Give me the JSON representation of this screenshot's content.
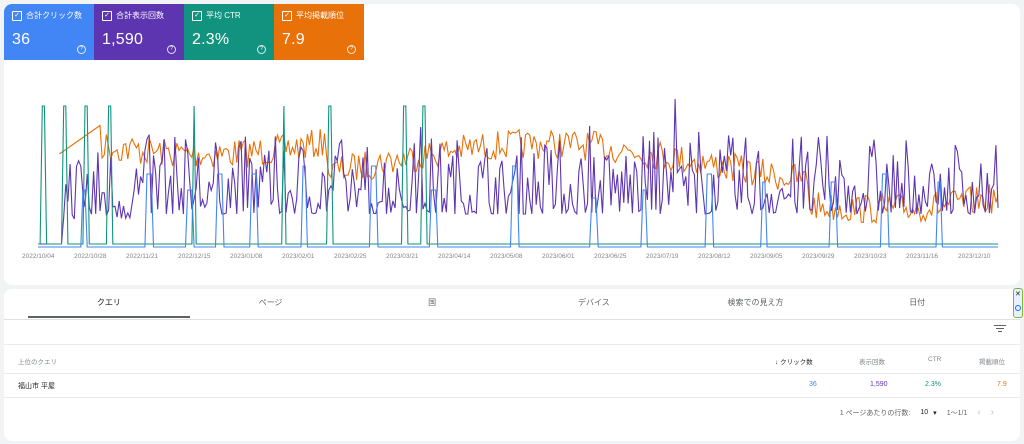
{
  "colors": {
    "clicks": "#4285f4",
    "impressions": "#5e35b1",
    "ctr": "#12937f",
    "position": "#e8710a"
  },
  "metrics": [
    {
      "key": "clicks",
      "label": "合計クリック数",
      "value": "36",
      "color": "#4285f4",
      "checked": true
    },
    {
      "key": "impressions",
      "label": "合計表示回数",
      "value": "1,590",
      "color": "#5e35b1",
      "checked": true
    },
    {
      "key": "ctr",
      "label": "平均 CTR",
      "value": "2.3%",
      "color": "#12937f",
      "checked": true
    },
    {
      "key": "position",
      "label": "平均掲載順位",
      "value": "7.9",
      "color": "#e8710a",
      "checked": true
    }
  ],
  "chart_data": {
    "type": "line",
    "title": "",
    "x_tick_labels": [
      "2022/10/04",
      "2022/10/28",
      "2022/11/21",
      "2022/12/15",
      "2023/01/08",
      "2023/02/01",
      "2023/02/25",
      "2023/03/21",
      "2023/04/14",
      "2023/05/08",
      "2023/06/01",
      "2023/06/25",
      "2023/07/19",
      "2023/08/12",
      "2023/09/05",
      "2023/09/29",
      "2023/10/23",
      "2023/11/16",
      "2023/12/10"
    ],
    "x_range": [
      "2022/10/04",
      "2023/12/31"
    ],
    "grid": false,
    "legend": "metric cards at top-left",
    "series_order": [
      "clicks",
      "impressions",
      "ctr",
      "position"
    ],
    "series": [
      {
        "key": "clicks",
        "approx_baseline": 0,
        "approx_peaks": [
          2,
          2,
          2,
          2,
          2,
          2
        ]
      },
      {
        "key": "impressions",
        "approx_range": [
          0,
          14
        ],
        "approx_max_date": "2023/08/12"
      },
      {
        "key": "ctr",
        "approx_range_pct": [
          0,
          100
        ]
      },
      {
        "key": "position",
        "approx_range": [
          5,
          12
        ],
        "reversed_axis": true
      }
    ]
  },
  "tabs": [
    {
      "label": "クエリ",
      "active": true
    },
    {
      "label": "ページ",
      "active": false
    },
    {
      "label": "国",
      "active": false
    },
    {
      "label": "デバイス",
      "active": false
    },
    {
      "label": "検索での見え方",
      "active": false
    },
    {
      "label": "日付",
      "active": false
    }
  ],
  "table": {
    "headers": {
      "query": "上位のクエリ",
      "clicks": "クリック数",
      "impressions": "表示回数",
      "ctr": "CTR",
      "position": "掲載順位"
    },
    "rows": [
      {
        "query": "福山市 平屋",
        "clicks": "36",
        "impressions": "1,590",
        "ctr": "2.3%",
        "position": "7.9"
      }
    ]
  },
  "pagination": {
    "rows_per_page_label": "1 ページあたりの行数:",
    "rows_per_page": "10",
    "range": "1〜1/1"
  }
}
